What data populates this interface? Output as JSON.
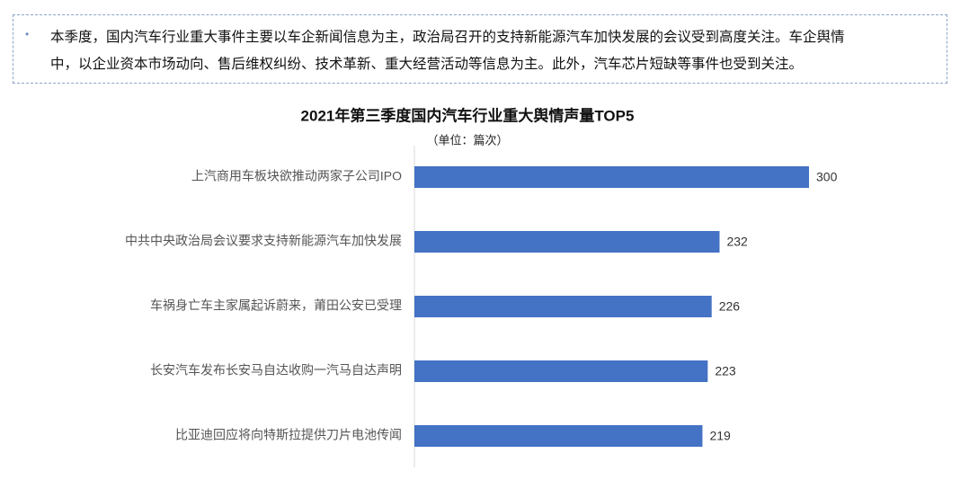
{
  "note": {
    "lines": [
      "本季度，国内汽车行业重大事件主要以车企新闻信息为主，政治局召开的支持新能源汽车加快发展的会议受到高度关注。车企舆情",
      "中，以企业资本市场动向、售后维权纠纷、技术革新、重大经营活动等信息为主。此外，汽车芯片短缺等事件也受到关注。"
    ]
  },
  "chart_data": {
    "type": "barh",
    "title": "2021年第三季度国内汽车行业重大舆情声量TOP5",
    "subtitle": "（单位：篇次）",
    "categories": [
      "上汽商用车板块欲推动两家子公司IPO",
      "中共中央政治局会议要求支持新能源汽车加快发展",
      "车祸身亡车主家属起诉蔚来，莆田公安已受理",
      "长安汽车发布长安马自达收购一汽马自达声明",
      "比亚迪回应将向特斯拉提供刀片电池传闻"
    ],
    "values": [
      300,
      232,
      226,
      223,
      219
    ],
    "color": "#4472c4"
  }
}
